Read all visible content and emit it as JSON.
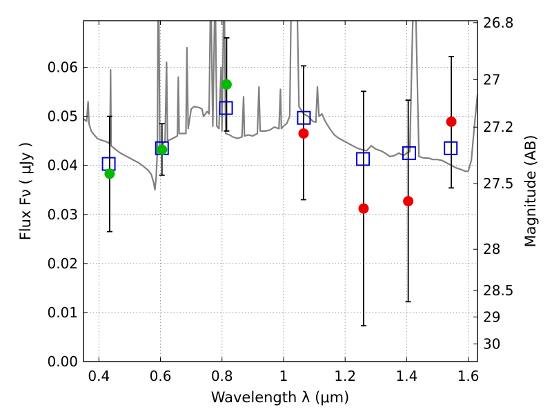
{
  "chart_data": {
    "type": "scatter",
    "xlabel": "Wavelength  λ (μm)",
    "ylabel": "Flux  Fν  ( μJy )",
    "ylabel_right": "Magnitude (AB)",
    "xlim": [
      0.35,
      1.63
    ],
    "ylim": [
      0.0,
      0.0695
    ],
    "grid": true,
    "x_ticks": [
      0.4,
      0.6,
      0.8,
      1.0,
      1.2,
      1.4,
      1.6
    ],
    "x_tick_labels": [
      "0.4",
      "0.6",
      "0.8",
      "1",
      "1.2",
      "1.4",
      "1.6"
    ],
    "y_ticks": [
      0.0,
      0.01,
      0.02,
      0.03,
      0.04,
      0.05,
      0.06
    ],
    "y_tick_labels": [
      "0.00",
      "0.01",
      "0.02",
      "0.03",
      "0.04",
      "0.05",
      "0.06"
    ],
    "right_ticks": [
      {
        "label": "26.8",
        "flux": 0.0691
      },
      {
        "label": "27",
        "flux": 0.0575
      },
      {
        "label": "27.2",
        "flux": 0.0478
      },
      {
        "label": "27.5",
        "flux": 0.0363
      },
      {
        "label": "28",
        "flux": 0.0229
      },
      {
        "label": "28.5",
        "flux": 0.0145
      },
      {
        "label": "29",
        "flux": 0.0091
      },
      {
        "label": "30",
        "flux": 0.0036
      }
    ],
    "colors": {
      "spectrum": "#808080",
      "model": "#0000cc",
      "obs_green": "#00bb00",
      "obs_red": "#ee0000",
      "errorbar": "#000000",
      "grid": "#9a9a9a"
    },
    "series": [
      {
        "marker": "circle-green",
        "points": [
          {
            "x": 0.435,
            "y": 0.0383,
            "ylo": 0.0265,
            "yhi": 0.05
          },
          {
            "x": 0.605,
            "y": 0.0432,
            "ylo": 0.038,
            "yhi": 0.0485
          },
          {
            "x": 0.815,
            "y": 0.0565,
            "ylo": 0.047,
            "yhi": 0.066
          }
        ]
      },
      {
        "marker": "circle-red",
        "points": [
          {
            "x": 1.065,
            "y": 0.0465,
            "ylo": 0.033,
            "yhi": 0.0603
          },
          {
            "x": 1.26,
            "y": 0.0312,
            "ylo": 0.0073,
            "yhi": 0.0551
          },
          {
            "x": 1.405,
            "y": 0.0327,
            "ylo": 0.0122,
            "yhi": 0.0533
          },
          {
            "x": 1.545,
            "y": 0.0489,
            "ylo": 0.0354,
            "yhi": 0.0622
          }
        ]
      },
      {
        "marker": "square-open-blue",
        "points": [
          {
            "x": 0.432,
            "y": 0.0403
          },
          {
            "x": 0.605,
            "y": 0.0435
          },
          {
            "x": 0.813,
            "y": 0.0517
          },
          {
            "x": 1.066,
            "y": 0.0497
          },
          {
            "x": 1.258,
            "y": 0.0413
          },
          {
            "x": 1.408,
            "y": 0.0425
          },
          {
            "x": 1.543,
            "y": 0.0435
          }
        ]
      },
      {
        "marker": "line-gray",
        "points": [
          [
            0.35,
            0.0495
          ],
          [
            0.36,
            0.049
          ],
          [
            0.365,
            0.053
          ],
          [
            0.368,
            0.0485
          ],
          [
            0.375,
            0.047
          ],
          [
            0.385,
            0.0462
          ],
          [
            0.395,
            0.0455
          ],
          [
            0.405,
            0.0452
          ],
          [
            0.415,
            0.045
          ],
          [
            0.425,
            0.0448
          ],
          [
            0.433,
            0.0445
          ],
          [
            0.436,
            0.0455
          ],
          [
            0.438,
            0.0595
          ],
          [
            0.44,
            0.044
          ],
          [
            0.455,
            0.0432
          ],
          [
            0.47,
            0.0425
          ],
          [
            0.485,
            0.042
          ],
          [
            0.5,
            0.0415
          ],
          [
            0.515,
            0.041
          ],
          [
            0.53,
            0.0405
          ],
          [
            0.545,
            0.0398
          ],
          [
            0.56,
            0.039
          ],
          [
            0.57,
            0.0382
          ],
          [
            0.578,
            0.0365
          ],
          [
            0.582,
            0.035
          ],
          [
            0.586,
            0.0375
          ],
          [
            0.59,
            0.043
          ],
          [
            0.592,
            0.07
          ],
          [
            0.595,
            0.07
          ],
          [
            0.598,
            0.044
          ],
          [
            0.605,
            0.044
          ],
          [
            0.615,
            0.045
          ],
          [
            0.62,
            0.061
          ],
          [
            0.623,
            0.045
          ],
          [
            0.64,
            0.0455
          ],
          [
            0.655,
            0.046
          ],
          [
            0.658,
            0.058
          ],
          [
            0.661,
            0.0465
          ],
          [
            0.67,
            0.0465
          ],
          [
            0.683,
            0.0465
          ],
          [
            0.686,
            0.064
          ],
          [
            0.69,
            0.0475
          ],
          [
            0.7,
            0.0515
          ],
          [
            0.71,
            0.052
          ],
          [
            0.725,
            0.0518
          ],
          [
            0.735,
            0.0515
          ],
          [
            0.74,
            0.05
          ],
          [
            0.752,
            0.051
          ],
          [
            0.758,
            0.0505
          ],
          [
            0.762,
            0.07
          ],
          [
            0.765,
            0.07
          ],
          [
            0.77,
            0.048
          ],
          [
            0.776,
            0.07
          ],
          [
            0.779,
            0.07
          ],
          [
            0.783,
            0.048
          ],
          [
            0.79,
            0.0475
          ],
          [
            0.797,
            0.06
          ],
          [
            0.8,
            0.047
          ],
          [
            0.805,
            0.07
          ],
          [
            0.808,
            0.07
          ],
          [
            0.812,
            0.0465
          ],
          [
            0.825,
            0.0462
          ],
          [
            0.835,
            0.0458
          ],
          [
            0.85,
            0.0455
          ],
          [
            0.865,
            0.0458
          ],
          [
            0.87,
            0.054
          ],
          [
            0.873,
            0.046
          ],
          [
            0.885,
            0.0462
          ],
          [
            0.9,
            0.046
          ],
          [
            0.915,
            0.0465
          ],
          [
            0.92,
            0.056
          ],
          [
            0.924,
            0.047
          ],
          [
            0.94,
            0.047
          ],
          [
            0.955,
            0.0472
          ],
          [
            0.97,
            0.0478
          ],
          [
            0.985,
            0.0475
          ],
          [
            0.99,
            0.0555
          ],
          [
            0.993,
            0.0475
          ],
          [
            1.0,
            0.048
          ],
          [
            1.01,
            0.0485
          ],
          [
            1.02,
            0.05
          ],
          [
            1.024,
            0.07
          ],
          [
            1.045,
            0.07
          ],
          [
            1.05,
            0.052
          ],
          [
            1.065,
            0.0505
          ],
          [
            1.08,
            0.05
          ],
          [
            1.095,
            0.049
          ],
          [
            1.105,
            0.0488
          ],
          [
            1.11,
            0.056
          ],
          [
            1.115,
            0.05
          ],
          [
            1.125,
            0.0505
          ],
          [
            1.135,
            0.049
          ],
          [
            1.15,
            0.0475
          ],
          [
            1.165,
            0.0462
          ],
          [
            1.18,
            0.0455
          ],
          [
            1.195,
            0.045
          ],
          [
            1.21,
            0.0445
          ],
          [
            1.225,
            0.044
          ],
          [
            1.24,
            0.0435
          ],
          [
            1.255,
            0.0432
          ],
          [
            1.27,
            0.043
          ],
          [
            1.285,
            0.044
          ],
          [
            1.3,
            0.0433
          ],
          [
            1.315,
            0.043
          ],
          [
            1.33,
            0.0425
          ],
          [
            1.345,
            0.0418
          ],
          [
            1.36,
            0.042
          ],
          [
            1.375,
            0.0425
          ],
          [
            1.39,
            0.042
          ],
          [
            1.4,
            0.0425
          ],
          [
            1.41,
            0.0428
          ],
          [
            1.42,
            0.07
          ],
          [
            1.43,
            0.07
          ],
          [
            1.44,
            0.0418
          ],
          [
            1.455,
            0.0415
          ],
          [
            1.47,
            0.0415
          ],
          [
            1.485,
            0.0412
          ],
          [
            1.5,
            0.0412
          ],
          [
            1.515,
            0.041
          ],
          [
            1.53,
            0.0405
          ],
          [
            1.545,
            0.04
          ],
          [
            1.56,
            0.0395
          ],
          [
            1.575,
            0.0392
          ],
          [
            1.59,
            0.0388
          ],
          [
            1.6,
            0.0388
          ],
          [
            1.61,
            0.041
          ],
          [
            1.62,
            0.048
          ],
          [
            1.63,
            0.0545
          ]
        ]
      }
    ]
  }
}
